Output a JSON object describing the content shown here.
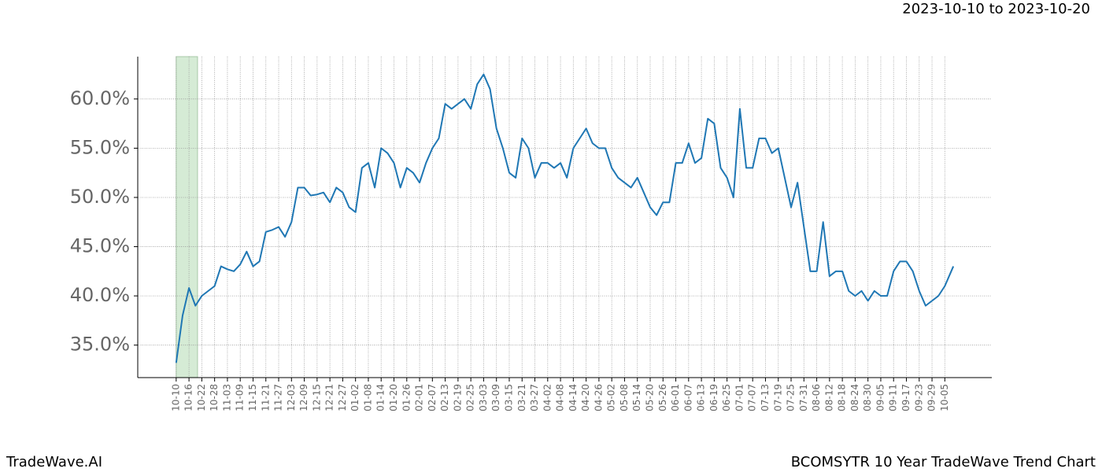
{
  "chart_data": {
    "type": "line",
    "title": "2023-10-10 to 2023-10-20",
    "footer_left": "TradeWave.AI",
    "footer_right": "BCOMSYTR 10 Year TradeWave Trend Chart",
    "color": "#1f77b4",
    "highlight_range": [
      0,
      10
    ],
    "highlight_color": "#d5ebd5",
    "grid": true,
    "x": [
      0,
      3,
      6,
      9,
      12,
      15,
      18,
      21,
      24,
      27,
      30,
      33,
      36,
      39,
      42,
      45,
      48,
      51,
      54,
      57,
      60,
      63,
      66,
      69,
      72,
      75,
      78,
      81,
      84,
      87,
      90,
      93,
      96,
      99,
      102,
      105,
      108,
      111,
      114,
      117,
      120,
      123,
      126,
      129,
      132,
      135,
      138,
      141,
      144,
      147,
      150,
      153,
      156,
      159,
      162,
      165,
      168,
      171,
      174,
      177,
      180,
      183,
      186,
      189,
      192,
      195,
      198,
      201,
      204,
      207,
      210,
      213,
      216,
      219,
      222,
      225,
      228,
      231,
      234,
      237,
      240,
      243,
      246,
      249,
      252,
      255,
      258,
      261,
      264,
      267,
      270,
      273,
      276,
      279,
      282,
      285,
      288,
      291,
      294,
      297,
      300,
      303,
      306,
      309,
      312,
      315,
      318,
      321,
      324,
      327,
      330,
      333,
      336,
      339,
      342,
      345,
      348,
      351,
      354,
      357,
      360,
      363,
      364
    ],
    "values": [
      33.2,
      38,
      40.8,
      39,
      40,
      40.5,
      41,
      43,
      42.7,
      42.5,
      43.2,
      44.5,
      43,
      43.5,
      46.5,
      46.7,
      47,
      46,
      47.5,
      51,
      51,
      50.2,
      50.3,
      50.5,
      49.5,
      51,
      50.5,
      49,
      48.5,
      53,
      53.5,
      51,
      55,
      54.5,
      53.5,
      51,
      53,
      52.5,
      51.5,
      53.5,
      55,
      56,
      59.5,
      59,
      59.5,
      60,
      59,
      61.5,
      62.5,
      61,
      57,
      55,
      52.5,
      52,
      56,
      55,
      52,
      53.5,
      53.5,
      53,
      53.5,
      52,
      55,
      56,
      57,
      55.5,
      55,
      55,
      53,
      52,
      51.5,
      51,
      52,
      50.5,
      49,
      48.2,
      49.5,
      49.5,
      53.5,
      53.5,
      55.5,
      53.5,
      54,
      58,
      57.5,
      53,
      52,
      50,
      59,
      53,
      53,
      56,
      56,
      54.5,
      55,
      52,
      49,
      51.5,
      47,
      42.5,
      42.5,
      47.5,
      42,
      42.5,
      42.5,
      40.5,
      40,
      40.5,
      39.5,
      40.5,
      40,
      40,
      42.5,
      43.5,
      43.5,
      42.5,
      40.5,
      39,
      39.5,
      40,
      41,
      42.5,
      43
    ],
    "xlim": [
      -18,
      382
    ],
    "ylim": [
      31.7,
      64.3
    ],
    "yticks": [
      {
        "value": 35,
        "label": "35.0%"
      },
      {
        "value": 40,
        "label": "40.0%"
      },
      {
        "value": 45,
        "label": "45.0%"
      },
      {
        "value": 50,
        "label": "50.0%"
      },
      {
        "value": 55,
        "label": "55.0%"
      },
      {
        "value": 60,
        "label": "60.0%"
      }
    ],
    "xticks": [
      {
        "value": 0,
        "label": "10-10"
      },
      {
        "value": 6,
        "label": "10-16"
      },
      {
        "value": 12,
        "label": "10-22"
      },
      {
        "value": 18,
        "label": "10-28"
      },
      {
        "value": 24,
        "label": "11-03"
      },
      {
        "value": 30,
        "label": "11-09"
      },
      {
        "value": 36,
        "label": "11-15"
      },
      {
        "value": 42,
        "label": "11-21"
      },
      {
        "value": 48,
        "label": "11-27"
      },
      {
        "value": 54,
        "label": "12-03"
      },
      {
        "value": 60,
        "label": "12-09"
      },
      {
        "value": 66,
        "label": "12-15"
      },
      {
        "value": 72,
        "label": "12-21"
      },
      {
        "value": 78,
        "label": "12-27"
      },
      {
        "value": 84,
        "label": "01-02"
      },
      {
        "value": 90,
        "label": "01-08"
      },
      {
        "value": 96,
        "label": "01-14"
      },
      {
        "value": 102,
        "label": "01-20"
      },
      {
        "value": 108,
        "label": "01-26"
      },
      {
        "value": 114,
        "label": "02-01"
      },
      {
        "value": 120,
        "label": "02-07"
      },
      {
        "value": 126,
        "label": "02-13"
      },
      {
        "value": 132,
        "label": "02-19"
      },
      {
        "value": 138,
        "label": "02-25"
      },
      {
        "value": 144,
        "label": "03-03"
      },
      {
        "value": 150,
        "label": "03-09"
      },
      {
        "value": 156,
        "label": "03-15"
      },
      {
        "value": 162,
        "label": "03-21"
      },
      {
        "value": 168,
        "label": "03-27"
      },
      {
        "value": 174,
        "label": "04-02"
      },
      {
        "value": 180,
        "label": "04-08"
      },
      {
        "value": 186,
        "label": "04-14"
      },
      {
        "value": 192,
        "label": "04-20"
      },
      {
        "value": 198,
        "label": "04-26"
      },
      {
        "value": 204,
        "label": "05-02"
      },
      {
        "value": 210,
        "label": "05-08"
      },
      {
        "value": 216,
        "label": "05-14"
      },
      {
        "value": 222,
        "label": "05-20"
      },
      {
        "value": 228,
        "label": "05-26"
      },
      {
        "value": 234,
        "label": "06-01"
      },
      {
        "value": 240,
        "label": "06-07"
      },
      {
        "value": 246,
        "label": "06-13"
      },
      {
        "value": 252,
        "label": "06-19"
      },
      {
        "value": 258,
        "label": "06-25"
      },
      {
        "value": 264,
        "label": "07-01"
      },
      {
        "value": 270,
        "label": "07-07"
      },
      {
        "value": 276,
        "label": "07-13"
      },
      {
        "value": 282,
        "label": "07-19"
      },
      {
        "value": 288,
        "label": "07-25"
      },
      {
        "value": 294,
        "label": "07-31"
      },
      {
        "value": 300,
        "label": "08-06"
      },
      {
        "value": 306,
        "label": "08-12"
      },
      {
        "value": 312,
        "label": "08-18"
      },
      {
        "value": 318,
        "label": "08-24"
      },
      {
        "value": 324,
        "label": "08-30"
      },
      {
        "value": 330,
        "label": "09-05"
      },
      {
        "value": 336,
        "label": "09-11"
      },
      {
        "value": 342,
        "label": "09-17"
      },
      {
        "value": 348,
        "label": "09-23"
      },
      {
        "value": 354,
        "label": "09-29"
      },
      {
        "value": 360,
        "label": "10-05"
      }
    ]
  }
}
